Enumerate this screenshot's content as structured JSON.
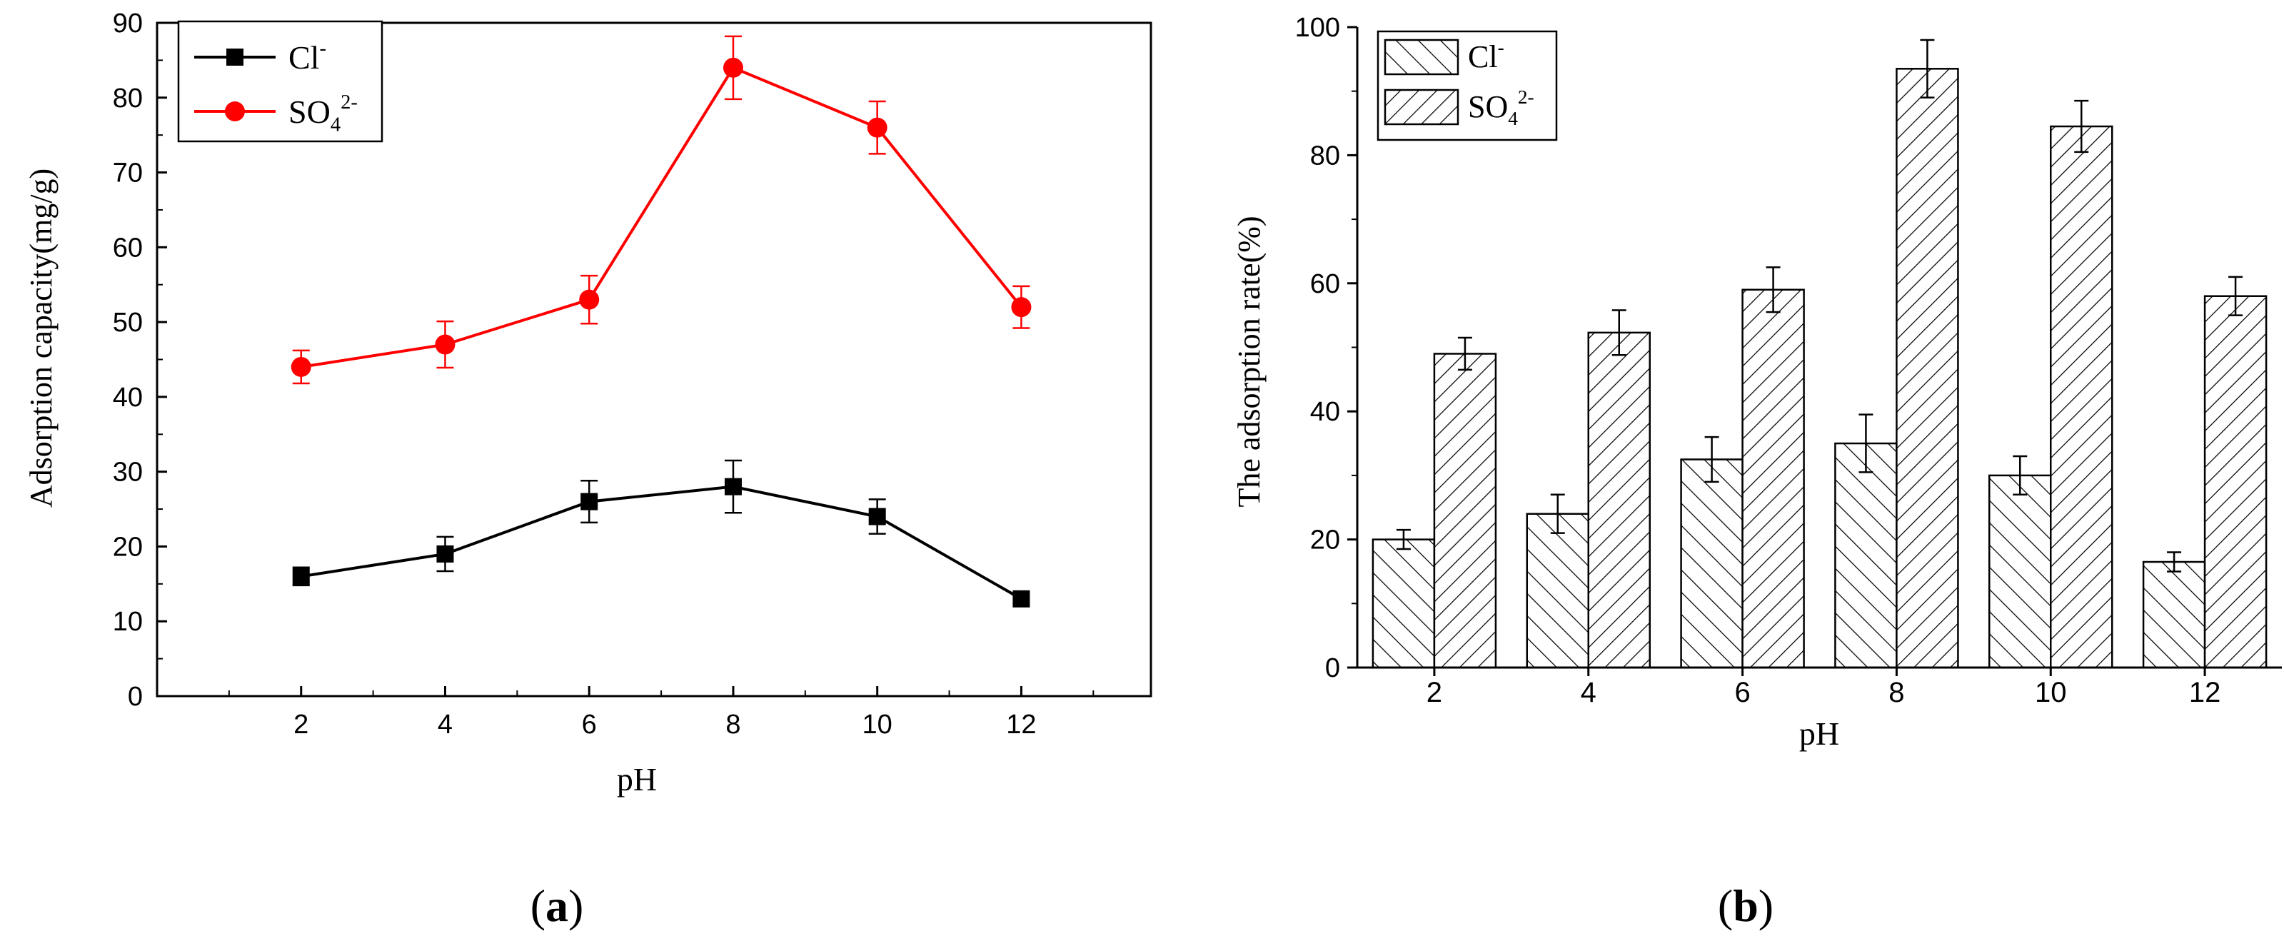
{
  "chart_data": [
    {
      "panel": "(a)",
      "panel_label": "a",
      "type": "line",
      "xlabel": "pH",
      "ylabel": "Adsorption capacity(mg/g)",
      "x": [
        2,
        4,
        6,
        8,
        10,
        12
      ],
      "xlim": [
        0,
        13.8
      ],
      "ylim": [
        0,
        90
      ],
      "xticks": [
        2,
        4,
        6,
        8,
        10,
        12
      ],
      "yticks": [
        0,
        10,
        20,
        30,
        40,
        50,
        60,
        70,
        80,
        90
      ],
      "legend": "top-left",
      "series": [
        {
          "name": "Cl",
          "sup": "-",
          "color": "#000000",
          "marker": "square",
          "values": [
            16,
            19,
            26,
            28,
            24,
            13
          ],
          "errors": [
            1.2,
            2.3,
            2.8,
            3.5,
            2.3,
            0.6
          ]
        },
        {
          "name": "SO4",
          "sub": "4",
          "base": "SO",
          "sup": "2-",
          "color": "#ff0000",
          "marker": "circle",
          "values": [
            44,
            47,
            53,
            84,
            76,
            52
          ],
          "errors": [
            2.2,
            3.1,
            3.2,
            4.2,
            3.5,
            2.8
          ]
        }
      ]
    },
    {
      "panel": "(b)",
      "panel_label": "b",
      "type": "bar",
      "xlabel": "pH",
      "ylabel": "The adsorption rate(%)",
      "categories": [
        "2",
        "4",
        "6",
        "8",
        "10",
        "12"
      ],
      "ylim": [
        0,
        100
      ],
      "yticks": [
        0,
        20,
        40,
        60,
        80,
        100
      ],
      "legend": "top-left",
      "series": [
        {
          "name": "Cl",
          "sup": "-",
          "pattern": "forward-hatch",
          "values": [
            20,
            24,
            32.5,
            35,
            30,
            16.5
          ],
          "errors": [
            1.5,
            3,
            3.5,
            4.5,
            3,
            1.5
          ]
        },
        {
          "name": "SO4",
          "base": "SO",
          "sub": "4",
          "sup": "2-",
          "pattern": "back-hatch",
          "values": [
            49,
            52.3,
            59,
            93.5,
            84.5,
            58
          ],
          "errors": [
            2.5,
            3.5,
            3.5,
            4.5,
            4,
            3
          ]
        }
      ]
    }
  ]
}
